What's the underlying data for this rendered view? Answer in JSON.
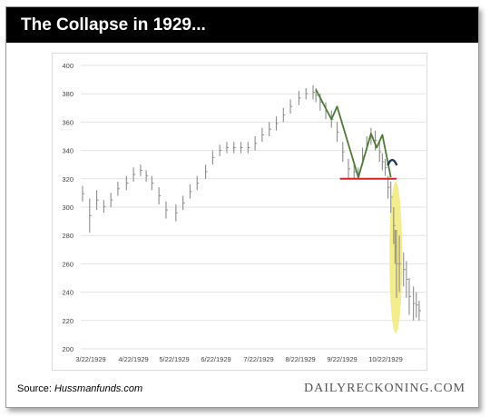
{
  "header": {
    "title": "The Collapse in 1929..."
  },
  "footer": {
    "source_prefix": "Source: ",
    "source_name": "Hussmanfunds.com",
    "brand": "DAILYRECKONING.COM"
  },
  "colors": {
    "bars": "#8c8c8c",
    "trend": "#4e7a35",
    "support": "#d3252a",
    "arc": "#1f3b5a",
    "highlight": "#f2ea7a",
    "grid": "#e3e3e3"
  },
  "chart_data": {
    "type": "ohlc",
    "title": "",
    "xlabel": "",
    "ylabel": "",
    "ylim": [
      200,
      400
    ],
    "yticks": [
      200,
      220,
      240,
      260,
      280,
      300,
      320,
      340,
      360,
      380,
      400
    ],
    "xticks": [
      "3/22/1929",
      "4/22/1929",
      "5/22/1929",
      "6/22/1929",
      "7/22/1929",
      "8/22/1929",
      "9/22/1929",
      "10/22/1929"
    ],
    "grid": "horizontal",
    "series": [
      {
        "x": [
          "1929-03-22",
          "1929-03-27",
          "1929-04-01",
          "1929-04-06",
          "1929-04-11",
          "1929-04-16",
          "1929-04-22",
          "1929-04-27",
          "1929-05-02",
          "1929-05-06",
          "1929-05-10",
          "1929-05-15",
          "1929-05-20",
          "1929-05-27",
          "1929-06-01",
          "1929-06-06",
          "1929-06-11",
          "1929-06-17",
          "1929-06-22",
          "1929-06-27",
          "1929-07-02",
          "1929-07-07",
          "1929-07-12",
          "1929-07-17",
          "1929-07-22",
          "1929-07-27",
          "1929-08-01",
          "1929-08-06",
          "1929-08-11",
          "1929-08-16",
          "1929-08-22",
          "1929-08-27",
          "1929-09-01",
          "1929-09-03",
          "1929-09-06",
          "1929-09-10",
          "1929-09-14",
          "1929-09-18",
          "1929-09-22",
          "1929-09-26",
          "1929-09-30",
          "1929-10-03",
          "1929-10-06",
          "1929-10-09",
          "1929-10-12",
          "1929-10-15",
          "1929-10-18",
          "1929-10-20",
          "1929-10-22",
          "1929-10-24",
          "1929-10-26",
          "1929-10-28",
          "1929-10-29",
          "1929-10-30",
          "1929-11-01",
          "1929-11-04",
          "1929-11-06",
          "1929-11-08",
          "1929-11-11",
          "1929-11-13",
          "1929-11-15"
        ],
        "high": [
          315,
          306,
          312,
          305,
          310,
          318,
          322,
          328,
          330,
          326,
          322,
          314,
          304,
          302,
          308,
          316,
          322,
          330,
          340,
          344,
          346,
          346,
          346,
          346,
          350,
          356,
          360,
          364,
          370,
          376,
          382,
          384,
          386,
          384,
          380,
          374,
          368,
          360,
          346,
          334,
          330,
          328,
          342,
          350,
          356,
          354,
          346,
          338,
          334,
          322,
          318,
          300,
          284,
          284,
          280,
          268,
          262,
          250,
          244,
          240,
          234
        ],
        "low": [
          304,
          282,
          298,
          296,
          300,
          308,
          312,
          318,
          322,
          318,
          312,
          302,
          292,
          290,
          298,
          306,
          312,
          320,
          330,
          336,
          338,
          338,
          338,
          338,
          340,
          346,
          350,
          354,
          360,
          366,
          372,
          376,
          376,
          374,
          368,
          362,
          356,
          346,
          332,
          320,
          320,
          320,
          330,
          340,
          344,
          340,
          332,
          326,
          322,
          306,
          296,
          274,
          260,
          236,
          240,
          244,
          236,
          224,
          220,
          222,
          220
        ]
      }
    ],
    "annotations": [
      {
        "type": "trendline",
        "points": [
          [
            "1929-09-03",
            383
          ],
          [
            "1929-09-14",
            362
          ],
          [
            "1929-09-18",
            371
          ],
          [
            "1929-10-03",
            321
          ],
          [
            "1929-10-12",
            352
          ],
          [
            "1929-10-16",
            342
          ],
          [
            "1929-10-20",
            351
          ],
          [
            "1929-10-26",
            321
          ]
        ]
      },
      {
        "type": "support",
        "y": 320,
        "from": "1929-09-20",
        "to": "1929-10-30"
      },
      {
        "type": "arc",
        "from": "1929-10-24",
        "to": "1929-10-30",
        "y": 332
      },
      {
        "type": "highlight",
        "from": "1929-10-25",
        "to": "1929-11-03",
        "ymin": 211,
        "ymax": 318
      }
    ]
  }
}
